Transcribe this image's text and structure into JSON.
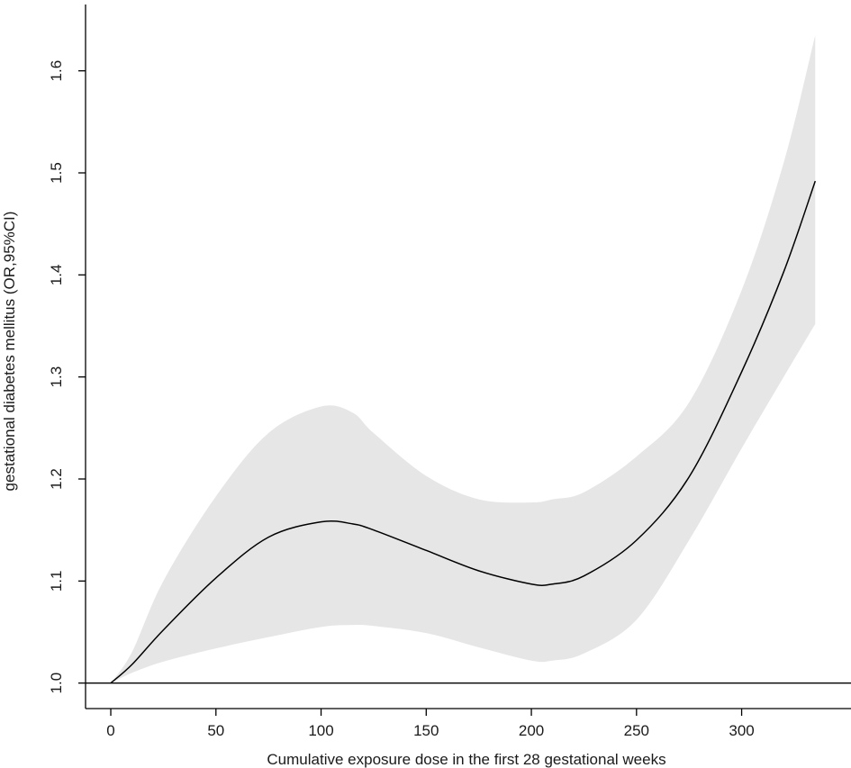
{
  "chart_data": {
    "type": "line",
    "title": "",
    "xlabel": "Cumulative exposure dose in the first 28 gestational weeks",
    "ylabel": "gestational diabetes mellitus (OR,95%CI)",
    "xlim": [
      -12,
      352
    ],
    "ylim": [
      0.975,
      1.665
    ],
    "x_ticks": [
      0,
      50,
      100,
      150,
      200,
      250,
      300
    ],
    "x_tick_labels": [
      "0",
      "50",
      "100",
      "150",
      "200",
      "250",
      "300"
    ],
    "y_ticks": [
      1.0,
      1.1,
      1.2,
      1.3,
      1.4,
      1.5,
      1.6
    ],
    "y_tick_labels": [
      "1.0",
      "1.1",
      "1.2",
      "1.3",
      "1.4",
      "1.5",
      "1.6"
    ],
    "reference_line": 1.0,
    "grid": false,
    "legend": "none",
    "colors": {
      "line": "#000000",
      "band": "#e6e6e6",
      "axis": "#000000"
    },
    "series": [
      {
        "x": [
          0,
          10,
          25,
          50,
          75,
          100,
          115,
          125,
          150,
          175,
          200,
          210,
          225,
          250,
          275,
          300,
          320,
          335
        ],
        "y": [
          1.0,
          1.018,
          1.052,
          1.103,
          1.143,
          1.158,
          1.156,
          1.15,
          1.13,
          1.11,
          1.097,
          1.097,
          1.105,
          1.14,
          1.202,
          1.305,
          1.403,
          1.492
        ],
        "lower": [
          1.0,
          1.01,
          1.021,
          1.034,
          1.045,
          1.055,
          1.057,
          1.056,
          1.049,
          1.035,
          1.022,
          1.022,
          1.029,
          1.062,
          1.14,
          1.23,
          1.3,
          1.352
        ],
        "upper": [
          1.0,
          1.03,
          1.1,
          1.183,
          1.245,
          1.271,
          1.265,
          1.245,
          1.203,
          1.18,
          1.177,
          1.18,
          1.187,
          1.222,
          1.275,
          1.385,
          1.51,
          1.635
        ]
      }
    ]
  }
}
